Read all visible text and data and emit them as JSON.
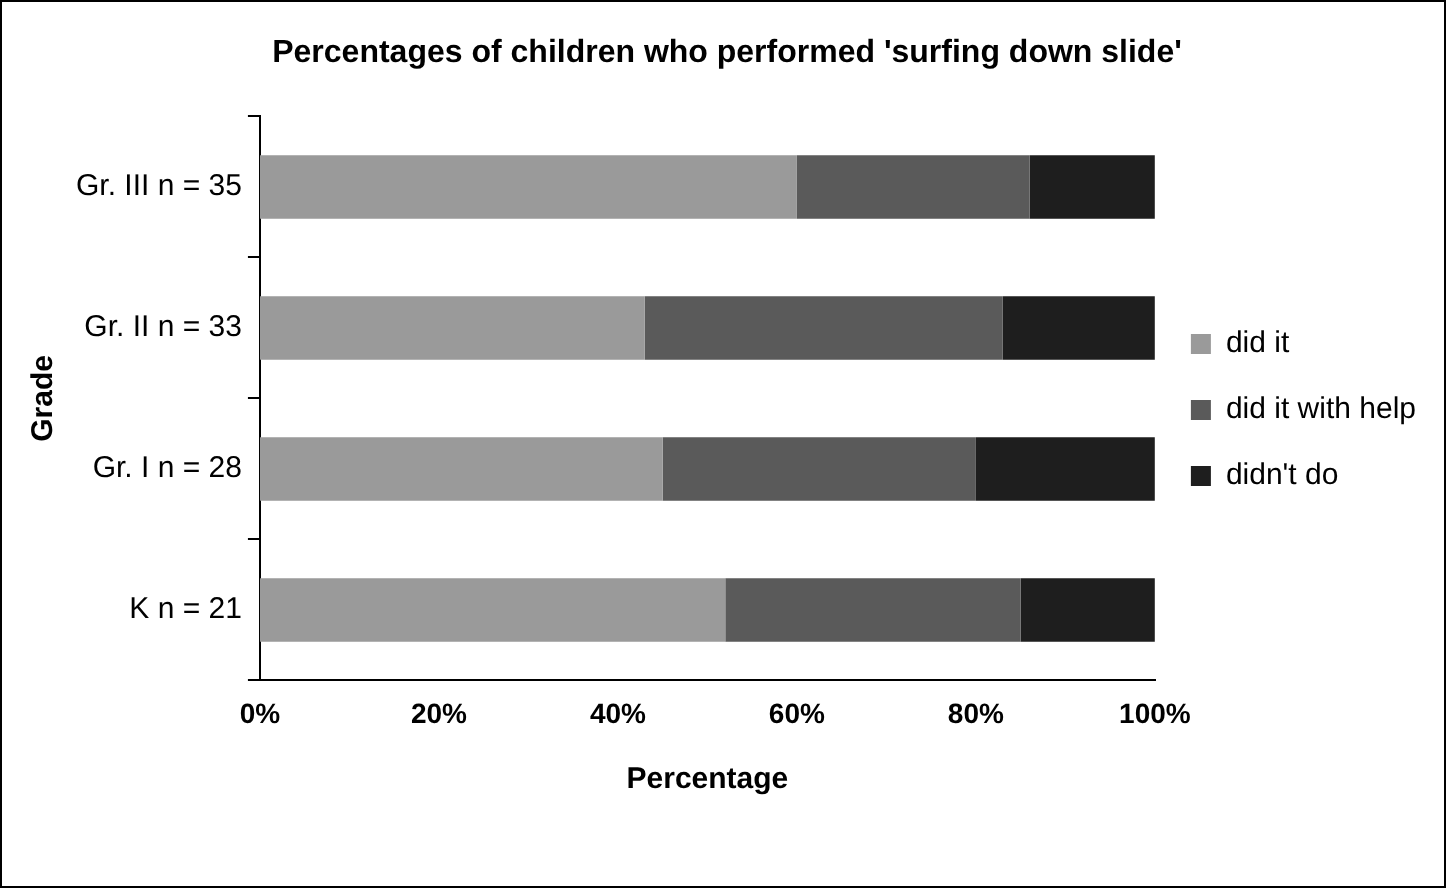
{
  "chart_data": {
    "type": "bar",
    "orientation": "horizontal",
    "stacked": true,
    "title": "Percentages of children who performed 'surfing down slide'",
    "xlabel": "Percentage",
    "ylabel": "Grade",
    "categories": [
      "Gr. III n = 35",
      "Gr. II n = 33",
      "Gr. I n = 28",
      "K n = 21"
    ],
    "series": [
      {
        "name": "did it",
        "color": "#9a9a9a",
        "values": [
          60,
          43,
          45,
          52
        ]
      },
      {
        "name": "did it with help",
        "color": "#5a5a5a",
        "values": [
          26,
          40,
          35,
          33
        ]
      },
      {
        "name": "didn't do",
        "color": "#1e1e1e",
        "values": [
          14,
          17,
          20,
          15
        ]
      }
    ],
    "xlim": [
      0,
      100
    ],
    "xticks": [
      {
        "value": 0,
        "label": "0%"
      },
      {
        "value": 20,
        "label": "20%"
      },
      {
        "value": 40,
        "label": "40%"
      },
      {
        "value": 60,
        "label": "60%"
      },
      {
        "value": 80,
        "label": "80%"
      },
      {
        "value": 100,
        "label": "100%"
      }
    ],
    "legend": "right",
    "grid": false
  }
}
